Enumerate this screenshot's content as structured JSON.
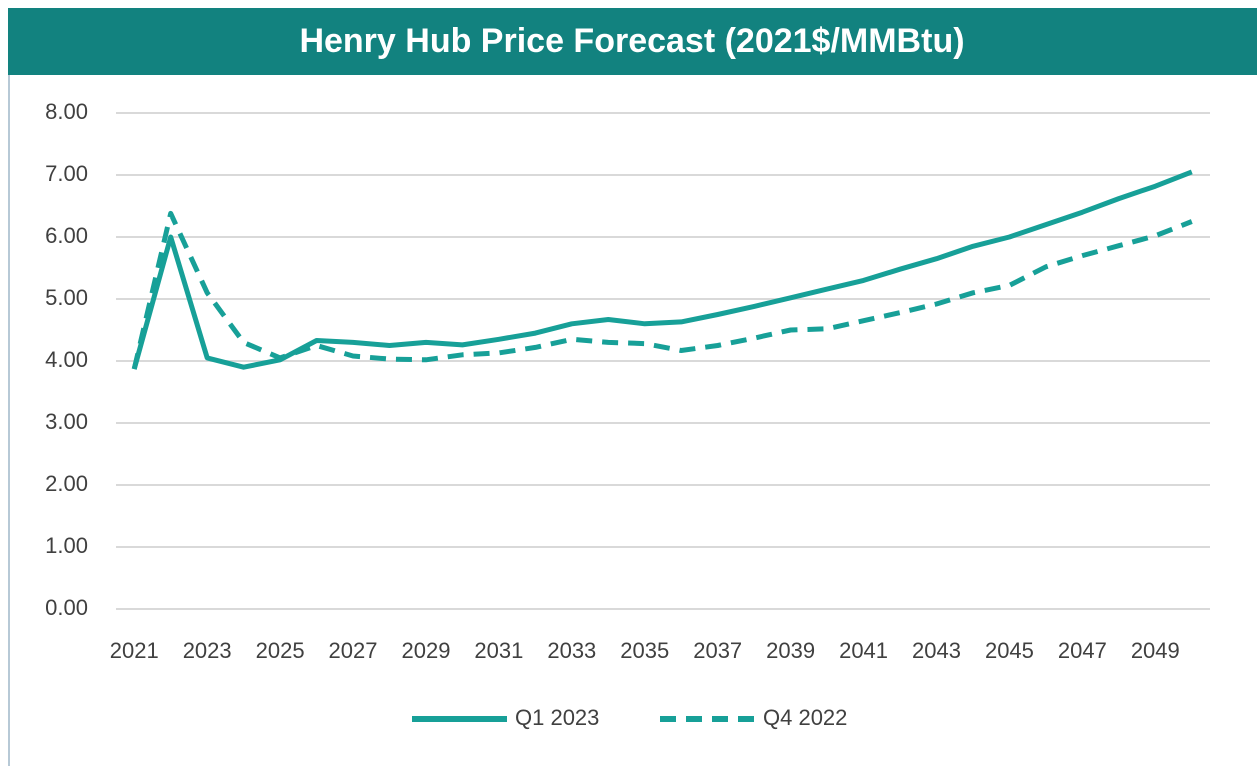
{
  "chart_data": {
    "type": "line",
    "title": "Henry Hub Price Forecast (2021$/MMBtu)",
    "categories": [
      "2021",
      null,
      "2023",
      null,
      "2025",
      null,
      "2027",
      null,
      "2029",
      null,
      "2031",
      null,
      "2033",
      null,
      "2035",
      null,
      "2037",
      null,
      "2039",
      null,
      "2041",
      null,
      "2043",
      null,
      "2045",
      null,
      "2047",
      null,
      "2049",
      null
    ],
    "series": [
      {
        "name": "Q1 2023",
        "color": "#17a098",
        "dash": false,
        "values": [
          3.87,
          6.0,
          4.05,
          3.9,
          4.02,
          4.33,
          4.3,
          4.25,
          4.3,
          4.26,
          4.35,
          4.45,
          4.6,
          4.67,
          4.6,
          4.63,
          4.75,
          4.88,
          5.02,
          5.16,
          5.3,
          5.48,
          5.65,
          5.85,
          6.0,
          6.2,
          6.4,
          6.62,
          6.82,
          7.05
        ]
      },
      {
        "name": "Q4 2022",
        "color": "#17a098",
        "dash": true,
        "values": [
          3.87,
          6.38,
          5.1,
          4.3,
          4.05,
          4.25,
          4.08,
          4.03,
          4.02,
          4.1,
          4.13,
          4.22,
          4.35,
          4.3,
          4.28,
          4.17,
          4.25,
          4.37,
          4.5,
          4.52,
          4.65,
          4.78,
          4.92,
          5.1,
          5.22,
          5.52,
          5.7,
          5.86,
          6.02,
          6.25
        ]
      }
    ],
    "ylim": [
      0,
      8
    ],
    "yticks": [
      {
        "value": 0,
        "label": "0.00"
      },
      {
        "value": 1,
        "label": "1.00"
      },
      {
        "value": 2,
        "label": "2.00"
      },
      {
        "value": 3,
        "label": "3.00"
      },
      {
        "value": 4,
        "label": "4.00"
      },
      {
        "value": 5,
        "label": "5.00"
      },
      {
        "value": 6,
        "label": "6.00"
      },
      {
        "value": 7,
        "label": "7.00"
      },
      {
        "value": 8,
        "label": "8.00"
      }
    ],
    "grid": true,
    "legend": "bottom"
  }
}
